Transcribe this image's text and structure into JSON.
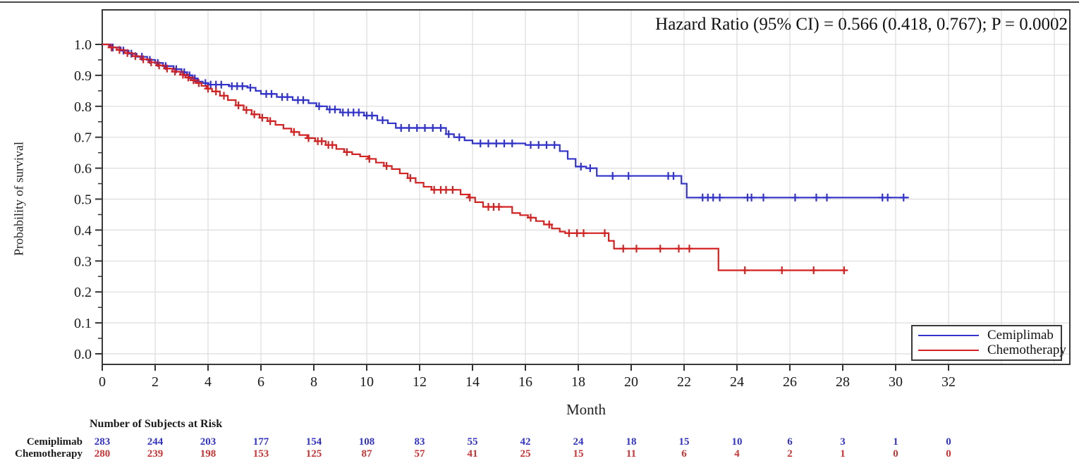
{
  "chart_data": {
    "type": "line",
    "subtype": "kaplan-meier-step-curves",
    "title": "Hazard Ratio (95% CI) = 0.566 (0.418, 0.767); P = 0.0002",
    "hazard_ratio": {
      "value": 0.566,
      "ci95": [
        0.418,
        0.767
      ],
      "p_value": 0.0002
    },
    "xlabel": "Month",
    "ylabel": "Probability of survival",
    "x_axis": {
      "ticks": [
        0,
        2,
        4,
        6,
        8,
        10,
        12,
        14,
        16,
        18,
        20,
        22,
        24,
        26,
        28,
        30,
        32
      ],
      "unlabeled_grid": [
        34,
        36
      ],
      "lim": [
        0,
        32
      ]
    },
    "y_axis": {
      "ticks": [
        "1.0",
        "0.9",
        "0.8",
        "0.7",
        "0.6",
        "0.5",
        "0.4",
        "0.3",
        "0.2",
        "0.1",
        "0.0"
      ],
      "minor_step": 0.05,
      "lim": [
        0.0,
        1.0
      ]
    },
    "grid": true,
    "legend_position": "bottom-right-inside",
    "series": [
      {
        "name": "Cemiplimab",
        "color": "#3232cc",
        "steps": [
          [
            0,
            1.0
          ],
          [
            0.3,
            0.99
          ],
          [
            0.7,
            0.98
          ],
          [
            1.0,
            0.97
          ],
          [
            1.3,
            0.96
          ],
          [
            1.7,
            0.95
          ],
          [
            2.0,
            0.94
          ],
          [
            2.3,
            0.93
          ],
          [
            2.7,
            0.92
          ],
          [
            3.0,
            0.91
          ],
          [
            3.2,
            0.9
          ],
          [
            3.4,
            0.89
          ],
          [
            3.6,
            0.88
          ],
          [
            3.8,
            0.875
          ],
          [
            4.0,
            0.87
          ],
          [
            4.8,
            0.865
          ],
          [
            5.5,
            0.86
          ],
          [
            5.8,
            0.85
          ],
          [
            6.0,
            0.84
          ],
          [
            6.6,
            0.83
          ],
          [
            7.2,
            0.82
          ],
          [
            7.8,
            0.81
          ],
          [
            8.1,
            0.8
          ],
          [
            8.5,
            0.79
          ],
          [
            9.0,
            0.78
          ],
          [
            9.9,
            0.77
          ],
          [
            10.4,
            0.755
          ],
          [
            10.8,
            0.745
          ],
          [
            11.1,
            0.73
          ],
          [
            13.0,
            0.71
          ],
          [
            13.3,
            0.7
          ],
          [
            13.7,
            0.69
          ],
          [
            14.0,
            0.68
          ],
          [
            16.0,
            0.675
          ],
          [
            17.3,
            0.655
          ],
          [
            17.6,
            0.63
          ],
          [
            17.9,
            0.605
          ],
          [
            18.3,
            0.6
          ],
          [
            18.7,
            0.575
          ],
          [
            21.9,
            0.55
          ],
          [
            22.1,
            0.505
          ],
          [
            30.5,
            0.505
          ]
        ],
        "censors": [
          [
            0.4,
            0.99
          ],
          [
            0.8,
            0.98
          ],
          [
            1.1,
            0.97
          ],
          [
            1.5,
            0.96
          ],
          [
            1.8,
            0.95
          ],
          [
            2.1,
            0.94
          ],
          [
            2.4,
            0.93
          ],
          [
            2.8,
            0.92
          ],
          [
            3.1,
            0.91
          ],
          [
            3.3,
            0.9
          ],
          [
            3.5,
            0.89
          ],
          [
            3.9,
            0.875
          ],
          [
            4.1,
            0.87
          ],
          [
            4.3,
            0.87
          ],
          [
            4.5,
            0.87
          ],
          [
            4.9,
            0.865
          ],
          [
            5.1,
            0.865
          ],
          [
            5.3,
            0.865
          ],
          [
            5.6,
            0.86
          ],
          [
            6.2,
            0.84
          ],
          [
            6.4,
            0.84
          ],
          [
            6.8,
            0.83
          ],
          [
            7.0,
            0.83
          ],
          [
            7.4,
            0.82
          ],
          [
            7.6,
            0.82
          ],
          [
            8.2,
            0.8
          ],
          [
            8.6,
            0.79
          ],
          [
            8.8,
            0.79
          ],
          [
            9.1,
            0.78
          ],
          [
            9.3,
            0.78
          ],
          [
            9.5,
            0.78
          ],
          [
            9.7,
            0.78
          ],
          [
            10.0,
            0.77
          ],
          [
            10.2,
            0.77
          ],
          [
            10.6,
            0.755
          ],
          [
            11.3,
            0.73
          ],
          [
            11.6,
            0.73
          ],
          [
            11.9,
            0.73
          ],
          [
            12.2,
            0.73
          ],
          [
            12.5,
            0.73
          ],
          [
            12.8,
            0.73
          ],
          [
            13.1,
            0.71
          ],
          [
            13.5,
            0.7
          ],
          [
            14.3,
            0.68
          ],
          [
            14.6,
            0.68
          ],
          [
            14.9,
            0.68
          ],
          [
            15.2,
            0.68
          ],
          [
            15.5,
            0.68
          ],
          [
            16.2,
            0.675
          ],
          [
            16.5,
            0.675
          ],
          [
            16.8,
            0.675
          ],
          [
            17.1,
            0.675
          ],
          [
            18.1,
            0.605
          ],
          [
            18.45,
            0.6
          ],
          [
            19.3,
            0.575
          ],
          [
            19.9,
            0.575
          ],
          [
            21.4,
            0.575
          ],
          [
            21.6,
            0.575
          ],
          [
            22.7,
            0.505
          ],
          [
            22.9,
            0.505
          ],
          [
            23.1,
            0.505
          ],
          [
            23.35,
            0.505
          ],
          [
            24.4,
            0.505
          ],
          [
            24.55,
            0.505
          ],
          [
            25.0,
            0.505
          ],
          [
            26.2,
            0.505
          ],
          [
            27.0,
            0.505
          ],
          [
            27.4,
            0.505
          ],
          [
            29.5,
            0.505
          ],
          [
            29.7,
            0.505
          ],
          [
            30.3,
            0.505
          ]
        ]
      },
      {
        "name": "Chemotherapy",
        "color": "#d42222",
        "steps": [
          [
            0,
            1.0
          ],
          [
            0.25,
            0.99
          ],
          [
            0.55,
            0.982
          ],
          [
            0.85,
            0.972
          ],
          [
            1.15,
            0.962
          ],
          [
            1.45,
            0.952
          ],
          [
            1.75,
            0.942
          ],
          [
            2.05,
            0.932
          ],
          [
            2.35,
            0.922
          ],
          [
            2.65,
            0.912
          ],
          [
            2.95,
            0.902
          ],
          [
            3.15,
            0.893
          ],
          [
            3.35,
            0.884
          ],
          [
            3.55,
            0.875
          ],
          [
            3.75,
            0.866
          ],
          [
            3.95,
            0.857
          ],
          [
            4.15,
            0.848
          ],
          [
            4.45,
            0.834
          ],
          [
            4.75,
            0.82
          ],
          [
            5.05,
            0.803
          ],
          [
            5.35,
            0.788
          ],
          [
            5.65,
            0.774
          ],
          [
            5.95,
            0.763
          ],
          [
            6.25,
            0.752
          ],
          [
            6.55,
            0.74
          ],
          [
            6.85,
            0.728
          ],
          [
            7.15,
            0.717
          ],
          [
            7.45,
            0.707
          ],
          [
            7.75,
            0.697
          ],
          [
            8.05,
            0.687
          ],
          [
            8.45,
            0.675
          ],
          [
            8.85,
            0.662
          ],
          [
            9.15,
            0.652
          ],
          [
            9.45,
            0.645
          ],
          [
            9.75,
            0.638
          ],
          [
            10.05,
            0.63
          ],
          [
            10.35,
            0.618
          ],
          [
            10.65,
            0.607
          ],
          [
            10.95,
            0.597
          ],
          [
            11.25,
            0.583
          ],
          [
            11.55,
            0.568
          ],
          [
            11.85,
            0.553
          ],
          [
            12.15,
            0.54
          ],
          [
            12.45,
            0.53
          ],
          [
            13.55,
            0.515
          ],
          [
            13.85,
            0.505
          ],
          [
            14.1,
            0.49
          ],
          [
            14.4,
            0.475
          ],
          [
            15.5,
            0.455
          ],
          [
            15.8,
            0.448
          ],
          [
            16.1,
            0.44
          ],
          [
            16.4,
            0.429
          ],
          [
            16.7,
            0.418
          ],
          [
            17.0,
            0.405
          ],
          [
            17.3,
            0.395
          ],
          [
            17.5,
            0.39
          ],
          [
            19.15,
            0.365
          ],
          [
            19.35,
            0.34
          ],
          [
            23.3,
            0.27
          ],
          [
            28.1,
            0.27
          ]
        ],
        "censors": [
          [
            0.35,
            0.99
          ],
          [
            0.65,
            0.982
          ],
          [
            0.95,
            0.972
          ],
          [
            1.25,
            0.962
          ],
          [
            1.55,
            0.952
          ],
          [
            1.85,
            0.942
          ],
          [
            2.15,
            0.932
          ],
          [
            2.45,
            0.922
          ],
          [
            2.75,
            0.912
          ],
          [
            3.05,
            0.902
          ],
          [
            3.25,
            0.893
          ],
          [
            3.45,
            0.884
          ],
          [
            3.65,
            0.875
          ],
          [
            4.0,
            0.857
          ],
          [
            4.3,
            0.848
          ],
          [
            4.6,
            0.834
          ],
          [
            5.15,
            0.803
          ],
          [
            5.45,
            0.788
          ],
          [
            5.75,
            0.774
          ],
          [
            6.05,
            0.763
          ],
          [
            6.35,
            0.752
          ],
          [
            7.25,
            0.717
          ],
          [
            7.8,
            0.697
          ],
          [
            8.15,
            0.687
          ],
          [
            8.3,
            0.687
          ],
          [
            8.55,
            0.675
          ],
          [
            8.7,
            0.675
          ],
          [
            9.25,
            0.652
          ],
          [
            10.1,
            0.63
          ],
          [
            10.75,
            0.607
          ],
          [
            11.65,
            0.568
          ],
          [
            12.55,
            0.53
          ],
          [
            12.8,
            0.53
          ],
          [
            13.0,
            0.53
          ],
          [
            13.25,
            0.53
          ],
          [
            13.9,
            0.505
          ],
          [
            14.6,
            0.475
          ],
          [
            14.8,
            0.475
          ],
          [
            15.0,
            0.475
          ],
          [
            16.2,
            0.44
          ],
          [
            16.9,
            0.418
          ],
          [
            17.65,
            0.39
          ],
          [
            17.95,
            0.39
          ],
          [
            18.2,
            0.39
          ],
          [
            19.0,
            0.39
          ],
          [
            19.7,
            0.34
          ],
          [
            20.2,
            0.34
          ],
          [
            21.1,
            0.34
          ],
          [
            21.8,
            0.34
          ],
          [
            22.2,
            0.34
          ],
          [
            24.3,
            0.27
          ],
          [
            25.7,
            0.27
          ],
          [
            26.9,
            0.27
          ],
          [
            28.05,
            0.27
          ]
        ]
      }
    ],
    "risk_table": {
      "header": "Number of Subjects at Risk",
      "months": [
        0,
        2,
        4,
        6,
        8,
        10,
        12,
        14,
        16,
        18,
        20,
        22,
        24,
        26,
        28,
        30,
        32
      ],
      "rows": [
        {
          "label": "Cemiplimab",
          "color": "#3333cc",
          "values": [
            283,
            244,
            203,
            177,
            154,
            108,
            83,
            55,
            42,
            24,
            18,
            15,
            10,
            6,
            3,
            1,
            0
          ]
        },
        {
          "label": "Chemotherapy",
          "color": "#cc3333",
          "values": [
            280,
            239,
            198,
            153,
            125,
            87,
            57,
            41,
            25,
            15,
            11,
            6,
            4,
            2,
            1,
            0,
            0
          ]
        }
      ]
    },
    "colors": {
      "frame": "#3a3a3a",
      "gridline": "#dcdcdc",
      "tick": "#333333"
    }
  }
}
